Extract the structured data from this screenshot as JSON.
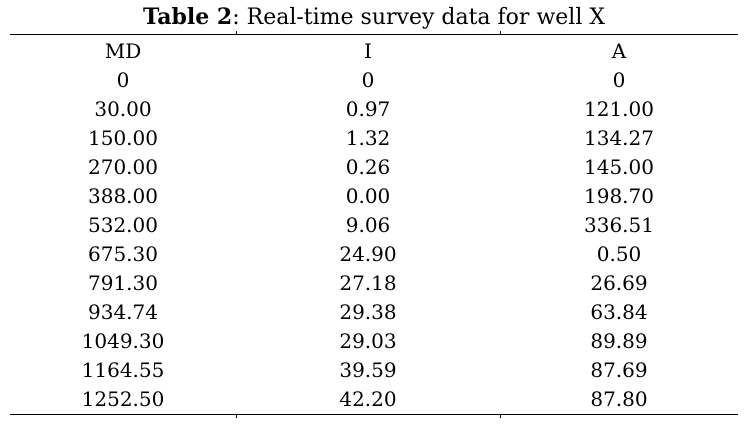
{
  "caption": {
    "label": "Table 2",
    "text": ": Real-time survey data for well X"
  },
  "table": {
    "headers": [
      "MD",
      "I",
      "A"
    ],
    "rows": [
      [
        "0",
        "0",
        "0"
      ],
      [
        "30.00",
        "0.97",
        "121.00"
      ],
      [
        "150.00",
        "1.32",
        "134.27"
      ],
      [
        "270.00",
        "0.26",
        "145.00"
      ],
      [
        "388.00",
        "0.00",
        "198.70"
      ],
      [
        "532.00",
        "9.06",
        "336.51"
      ],
      [
        "675.30",
        "24.90",
        "0.50"
      ],
      [
        "791.30",
        "27.18",
        "26.69"
      ],
      [
        "934.74",
        "29.38",
        "63.84"
      ],
      [
        "1049.30",
        "29.03",
        "89.89"
      ],
      [
        "1164.55",
        "39.59",
        "87.69"
      ],
      [
        "1252.50",
        "42.20",
        "87.80"
      ]
    ]
  }
}
